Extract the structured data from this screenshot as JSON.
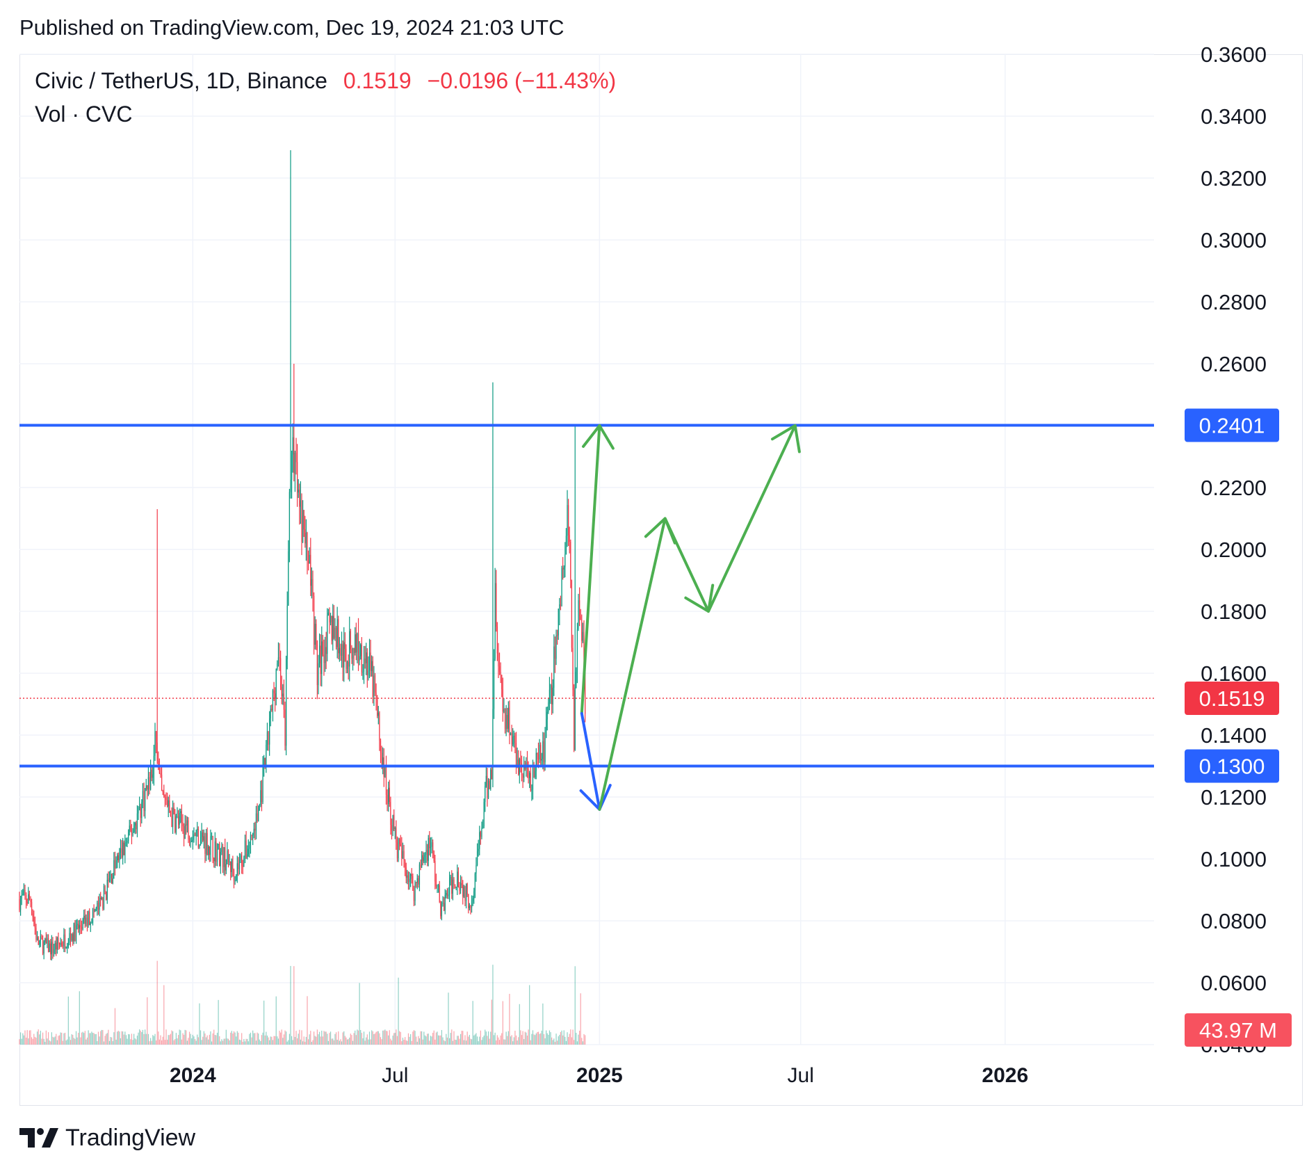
{
  "header": {
    "published": "Published on TradingView.com, Dec 19, 2024 21:03 UTC"
  },
  "legend": {
    "symbol": "Civic / TetherUS, 1D, Binance",
    "price": "0.1519",
    "change": "−0.0196 (−11.43%)",
    "volume_label": "Vol · CVC"
  },
  "footer": {
    "brand": "TradingView"
  },
  "colors": {
    "up": "#089981",
    "down": "#f23645",
    "level": "#2962ff",
    "arrow_green": "#4caf50",
    "arrow_blue": "#2962ff",
    "grid": "#f0f3fa"
  },
  "chart_data": {
    "type": "candlestick",
    "y_axis": {
      "ticks": [
        "0.3600",
        "0.3400",
        "0.3200",
        "0.3000",
        "0.2800",
        "0.2600",
        "0.2400",
        "0.2200",
        "0.2000",
        "0.1800",
        "0.1600",
        "0.1400",
        "0.1200",
        "0.1000",
        "0.0800",
        "0.0600",
        "0.0400"
      ],
      "range": [
        0.04,
        0.36
      ]
    },
    "x_axis": {
      "ticks": [
        {
          "label": "2024",
          "date": "2024-01-01",
          "bold": true
        },
        {
          "label": "Jul",
          "date": "2024-07-01",
          "bold": false
        },
        {
          "label": "2025",
          "date": "2025-01-01",
          "bold": true
        },
        {
          "label": "Jul",
          "date": "2025-07-01",
          "bold": false
        },
        {
          "label": "2026",
          "date": "2026-01-01",
          "bold": true
        }
      ],
      "range": [
        "2023-07-29",
        "2026-05-15"
      ]
    },
    "price_path": [
      [
        "2023-07-29",
        0.087
      ],
      [
        "2023-08-08",
        0.087
      ],
      [
        "2023-08-14",
        0.073
      ],
      [
        "2023-08-28",
        0.071
      ],
      [
        "2023-09-12",
        0.075
      ],
      [
        "2023-09-25",
        0.079
      ],
      [
        "2023-10-10",
        0.085
      ],
      [
        "2023-10-22",
        0.097
      ],
      [
        "2023-11-05",
        0.107
      ],
      [
        "2023-11-16",
        0.118
      ],
      [
        "2023-11-26",
        0.128
      ],
      [
        "2023-11-29",
        0.14
      ],
      [
        "2023-11-30",
        0.13
      ],
      [
        "2023-12-04",
        0.12
      ],
      [
        "2023-12-14",
        0.113
      ],
      [
        "2023-12-28",
        0.11
      ],
      [
        "2024-01-15",
        0.105
      ],
      [
        "2024-01-30",
        0.1
      ],
      [
        "2024-02-08",
        0.096
      ],
      [
        "2024-02-20",
        0.104
      ],
      [
        "2024-02-28",
        0.113
      ],
      [
        "2024-03-06",
        0.13
      ],
      [
        "2024-03-12",
        0.148
      ],
      [
        "2024-03-18",
        0.168
      ],
      [
        "2024-03-24",
        0.14
      ],
      [
        "2024-03-28",
        0.218
      ],
      [
        "2024-04-01",
        0.232
      ],
      [
        "2024-04-05",
        0.214
      ],
      [
        "2024-04-10",
        0.205
      ],
      [
        "2024-04-16",
        0.192
      ],
      [
        "2024-04-22",
        0.16
      ],
      [
        "2024-04-28",
        0.17
      ],
      [
        "2024-05-06",
        0.176
      ],
      [
        "2024-05-16",
        0.165
      ],
      [
        "2024-05-26",
        0.17
      ],
      [
        "2024-06-05",
        0.165
      ],
      [
        "2024-06-12",
        0.155
      ],
      [
        "2024-06-20",
        0.13
      ],
      [
        "2024-06-26",
        0.117
      ],
      [
        "2024-07-02",
        0.105
      ],
      [
        "2024-07-10",
        0.098
      ],
      [
        "2024-07-18",
        0.09
      ],
      [
        "2024-07-26",
        0.1
      ],
      [
        "2024-08-02",
        0.106
      ],
      [
        "2024-08-07",
        0.092
      ],
      [
        "2024-08-12",
        0.083
      ],
      [
        "2024-08-18",
        0.09
      ],
      [
        "2024-08-26",
        0.095
      ],
      [
        "2024-09-01",
        0.09
      ],
      [
        "2024-09-07",
        0.086
      ],
      [
        "2024-09-15",
        0.105
      ],
      [
        "2024-09-21",
        0.122
      ],
      [
        "2024-09-26",
        0.128
      ],
      [
        "2024-09-29",
        0.19
      ],
      [
        "2024-10-02",
        0.165
      ],
      [
        "2024-10-07",
        0.148
      ],
      [
        "2024-10-14",
        0.14
      ],
      [
        "2024-10-22",
        0.13
      ],
      [
        "2024-10-30",
        0.126
      ],
      [
        "2024-11-06",
        0.13
      ],
      [
        "2024-11-12",
        0.135
      ],
      [
        "2024-11-18",
        0.152
      ],
      [
        "2024-11-24",
        0.175
      ],
      [
        "2024-11-28",
        0.19
      ],
      [
        "2024-12-03",
        0.207
      ],
      [
        "2024-12-06",
        0.192
      ],
      [
        "2024-12-09",
        0.14
      ],
      [
        "2024-12-13",
        0.19
      ],
      [
        "2024-12-17",
        0.17
      ],
      [
        "2024-12-19",
        0.1519
      ]
    ],
    "spikes": [
      {
        "date": "2023-11-30",
        "high": 0.213
      },
      {
        "date": "2024-03-29",
        "high": 0.329
      },
      {
        "date": "2024-04-01",
        "high": 0.26
      },
      {
        "date": "2024-09-27",
        "high": 0.254
      },
      {
        "date": "2024-12-10",
        "high": 0.24
      }
    ],
    "levels": [
      {
        "price": 0.2401,
        "label": "0.2401"
      },
      {
        "price": 0.13,
        "label": "0.1300"
      }
    ],
    "last_price": {
      "price": 0.1519,
      "label": "0.1519"
    },
    "volume": {
      "label": "43.97 M"
    },
    "projections": {
      "bull": [
        [
          "2024-12-16",
          0.147
        ],
        [
          "2025-01-01",
          0.24
        ]
      ],
      "bear": [
        [
          "2024-12-16",
          0.147
        ],
        [
          "2025-01-01",
          0.116
        ]
      ],
      "zigzag": [
        [
          "2025-01-01",
          0.116
        ],
        [
          "2025-03-01",
          0.21
        ],
        [
          "2025-04-09",
          0.18
        ],
        [
          "2025-06-26",
          0.24
        ]
      ]
    }
  }
}
